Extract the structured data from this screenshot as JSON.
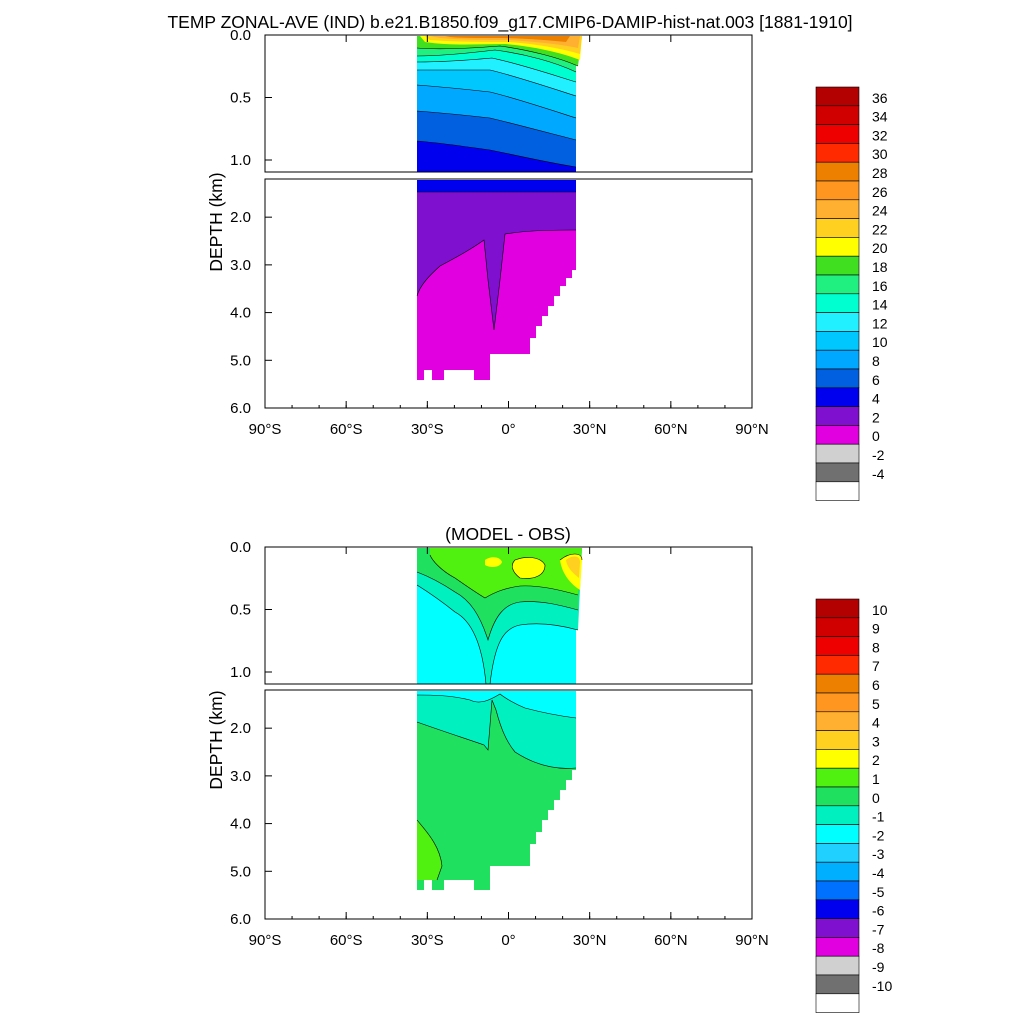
{
  "chart_data": [
    {
      "type": "heatmap",
      "title": "TEMP ZONAL-AVE (IND) b.e21.B1850.f09_g17.CMIP6-DAMIP-hist-nat.003 [1881-1910]",
      "ylabel": "DEPTH (km)",
      "xlabel": "",
      "x_ticks": [
        "90°S",
        "60°S",
        "30°S",
        "0°",
        "30°N",
        "60°N",
        "90°N"
      ],
      "upper_y_ticks": [
        "0.0",
        "0.5",
        "1.0"
      ],
      "lower_y_ticks": [
        "2.0",
        "3.0",
        "4.0",
        "5.0",
        "6.0"
      ],
      "xlim": [
        -90,
        90
      ],
      "ylim_km": [
        6.0,
        0.0
      ],
      "data_extent_lat": [
        -34,
        25
      ],
      "colorbar": {
        "labels": [
          "36",
          "34",
          "32",
          "30",
          "28",
          "26",
          "24",
          "22",
          "20",
          "18",
          "16",
          "14",
          "12",
          "10",
          "8",
          "6",
          "4",
          "2",
          "0",
          "-2",
          "-4"
        ],
        "colors": [
          "#b30000",
          "#d10000",
          "#ee0000",
          "#ff2a00",
          "#ee8000",
          "#ff9620",
          "#ffb030",
          "#ffd020",
          "#ffff00",
          "#40e020",
          "#20f080",
          "#00ffd0",
          "#20f0ff",
          "#00c8ff",
          "#00a8ff",
          "#0060e0",
          "#0000ee",
          "#8010d0",
          "#e000e0",
          "#d0d0d0",
          "#707070",
          "#ffffff"
        ]
      }
    },
    {
      "type": "heatmap",
      "title": "(MODEL - OBS)",
      "ylabel": "DEPTH (km)",
      "xlabel": "",
      "x_ticks": [
        "90°S",
        "60°S",
        "30°S",
        "0°",
        "30°N",
        "60°N",
        "90°N"
      ],
      "upper_y_ticks": [
        "0.0",
        "0.5",
        "1.0"
      ],
      "lower_y_ticks": [
        "2.0",
        "3.0",
        "4.0",
        "5.0",
        "6.0"
      ],
      "xlim": [
        -90,
        90
      ],
      "ylim_km": [
        6.0,
        0.0
      ],
      "data_extent_lat": [
        -34,
        25
      ],
      "colorbar": {
        "labels": [
          "10",
          "9",
          "8",
          "7",
          "6",
          "5",
          "4",
          "3",
          "2",
          "1",
          "0",
          "-1",
          "-2",
          "-3",
          "-4",
          "-5",
          "-6",
          "-7",
          "-8",
          "-9",
          "-10"
        ],
        "colors": [
          "#b30000",
          "#d10000",
          "#ee0000",
          "#ff2a00",
          "#ee8000",
          "#ff9620",
          "#ffb030",
          "#ffd020",
          "#ffff00",
          "#50f010",
          "#20e060",
          "#00f0c0",
          "#00ffff",
          "#20d0ff",
          "#00b0ff",
          "#0070ff",
          "#0000ee",
          "#8010d0",
          "#e000e0",
          "#d0d0d0",
          "#707070",
          "#ffffff"
        ]
      }
    }
  ]
}
